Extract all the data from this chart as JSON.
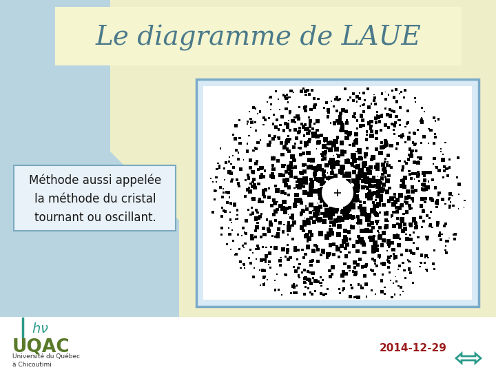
{
  "title": "Le diagramme de LAUE",
  "title_box_color": "#f5f5d0",
  "title_color": "#4a7a8a",
  "title_fontsize": 28,
  "bg_color": "#ffffff",
  "light_blue_color": "#b8d4e0",
  "light_yellow_color": "#eeeec8",
  "text_box_text": [
    "Méthode aussi appelée",
    "la méthode du cristal",
    "tournant ou oscillant."
  ],
  "text_box_color": "#e8f2f8",
  "text_box_border": "#7aaac0",
  "text_fontsize": 12,
  "hv_color": "#2a9a8a",
  "uqac_color": "#5a7a2a",
  "uqac_text": "UQAC",
  "univ_text": "Université du Québec\nà Chicoutimi",
  "date_text": "2014-12-29",
  "date_color": "#9a1a1a",
  "date_fontsize": 11,
  "laue_border_color": "#7aaac8",
  "laue_bg_color": "#d8eaf5"
}
